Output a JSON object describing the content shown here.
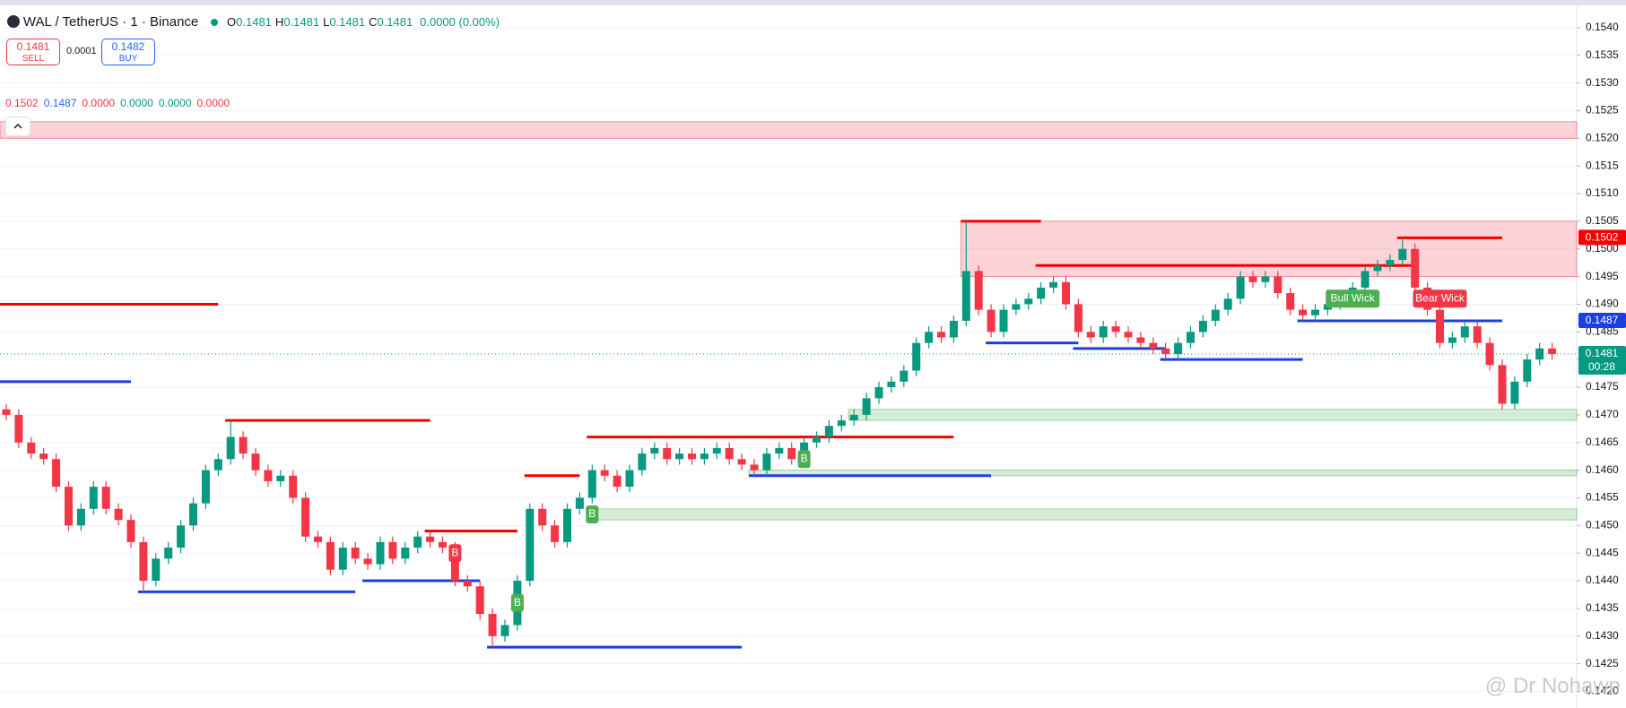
{
  "header": {
    "symbol": "WAL / TetherUS · 1 · Binance",
    "ohlc": [
      {
        "label": "O",
        "value": "0.1481"
      },
      {
        "label": "H",
        "value": "0.1481"
      },
      {
        "label": "L",
        "value": "0.1481"
      },
      {
        "label": "C",
        "value": "0.1481"
      }
    ],
    "change": "0.0000 (0.00%)"
  },
  "trade": {
    "sell_price": "0.1481",
    "sell_label": "SELL",
    "spread": "0.0001",
    "buy_price": "0.1482",
    "buy_label": "BUY"
  },
  "indicator_values": [
    {
      "text": "0.1502",
      "color": "#f23645"
    },
    {
      "text": "0.1487",
      "color": "#2962ff"
    },
    {
      "text": "0.0000",
      "color": "#f23645"
    },
    {
      "text": "0.0000",
      "color": "#089981"
    },
    {
      "text": "0.0000",
      "color": "#089981"
    },
    {
      "text": "0.0000",
      "color": "#f23645"
    }
  ],
  "watermark": "@ Dr Nohawn",
  "chart_data": {
    "type": "candlestick",
    "up_color": "#089981",
    "down_color": "#f23645",
    "open": [
      0.1471,
      0.147,
      0.1465,
      0.1463,
      0.1462,
      0.1457,
      0.145,
      0.1453,
      0.1457,
      0.1453,
      0.1451,
      0.1447,
      0.144,
      0.1444,
      0.1446,
      0.145,
      0.1454,
      0.146,
      0.1462,
      0.1466,
      0.1463,
      0.146,
      0.1458,
      0.1459,
      0.1455,
      0.1448,
      0.1447,
      0.1442,
      0.1446,
      0.1444,
      0.1443,
      0.1447,
      0.1444,
      0.1446,
      0.1448,
      0.1447,
      0.1446,
      0.144,
      0.1439,
      0.1434,
      0.143,
      0.1432,
      0.144,
      0.1453,
      0.145,
      0.1447,
      0.1453,
      0.1455,
      0.146,
      0.1459,
      0.1457,
      0.146,
      0.1463,
      0.1464,
      0.1462,
      0.1463,
      0.1462,
      0.1463,
      0.1464,
      0.1462,
      0.1461,
      0.146,
      0.1463,
      0.1464,
      0.1462,
      0.1465,
      0.1466,
      0.1468,
      0.1469,
      0.147,
      0.1473,
      0.1475,
      0.1476,
      0.1478,
      0.1483,
      0.1485,
      0.1484,
      0.1487,
      0.1496,
      0.1489,
      0.1485,
      0.1489,
      0.149,
      0.1491,
      0.1493,
      0.1494,
      0.149,
      0.1485,
      0.1484,
      0.1486,
      0.1485,
      0.1484,
      0.1483,
      0.1482,
      0.1481,
      0.1483,
      0.1485,
      0.1487,
      0.1489,
      0.1491,
      0.1495,
      0.1494,
      0.1495,
      0.1492,
      0.1489,
      0.1488,
      0.1489,
      0.149,
      0.1491,
      0.1493,
      0.1496,
      0.1497,
      0.1498,
      0.15,
      0.1493,
      0.1489,
      0.1483,
      0.1484,
      0.1486,
      0.1483,
      0.1479,
      0.1472,
      0.1476,
      0.148,
      0.1482
    ],
    "high": [
      0.1472,
      0.1471,
      0.1466,
      0.1464,
      0.1463,
      0.1458,
      0.1454,
      0.1458,
      0.1458,
      0.1454,
      0.1452,
      0.1448,
      0.1445,
      0.1447,
      0.1451,
      0.1455,
      0.1461,
      0.1463,
      0.1469,
      0.1467,
      0.1464,
      0.1461,
      0.146,
      0.146,
      0.1456,
      0.1449,
      0.1448,
      0.1447,
      0.1447,
      0.1445,
      0.1448,
      0.1448,
      0.1447,
      0.1449,
      0.1449,
      0.1448,
      0.1447,
      0.1441,
      0.144,
      0.1435,
      0.1433,
      0.1441,
      0.1454,
      0.1454,
      0.1451,
      0.1454,
      0.1456,
      0.1461,
      0.1461,
      0.146,
      0.1461,
      0.1464,
      0.1465,
      0.1465,
      0.1464,
      0.1464,
      0.1464,
      0.1465,
      0.1465,
      0.1463,
      0.1462,
      0.1464,
      0.1465,
      0.1465,
      0.1466,
      0.1467,
      0.1469,
      0.147,
      0.1471,
      0.1474,
      0.1476,
      0.1477,
      0.1479,
      0.1484,
      0.1486,
      0.1486,
      0.1488,
      0.1505,
      0.1497,
      0.149,
      0.149,
      0.1491,
      0.1492,
      0.1494,
      0.1495,
      0.1495,
      0.1491,
      0.1486,
      0.1487,
      0.1487,
      0.1486,
      0.1485,
      0.1484,
      0.1483,
      0.1484,
      0.1486,
      0.1488,
      0.149,
      0.1492,
      0.1496,
      0.1496,
      0.1496,
      0.1496,
      0.1493,
      0.149,
      0.149,
      0.1491,
      0.1492,
      0.1494,
      0.1497,
      0.1498,
      0.1499,
      0.1502,
      0.1501,
      0.1494,
      0.149,
      0.1485,
      0.1487,
      0.1487,
      0.1484,
      0.148,
      0.1477,
      0.1481,
      0.1483,
      0.1483
    ],
    "low": [
      0.1469,
      0.1464,
      0.1462,
      0.1461,
      0.1456,
      0.1449,
      0.1449,
      0.1452,
      0.1452,
      0.145,
      0.1446,
      0.1438,
      0.1439,
      0.1443,
      0.1445,
      0.1449,
      0.1453,
      0.1459,
      0.1461,
      0.1462,
      0.1459,
      0.1457,
      0.1457,
      0.1454,
      0.1447,
      0.1446,
      0.1441,
      0.1441,
      0.1443,
      0.1442,
      0.1442,
      0.1443,
      0.1443,
      0.1445,
      0.1446,
      0.1445,
      0.1439,
      0.1438,
      0.1433,
      0.1428,
      0.1429,
      0.1431,
      0.1439,
      0.1449,
      0.1446,
      0.1446,
      0.1452,
      0.1454,
      0.1458,
      0.1456,
      0.1456,
      0.1459,
      0.1462,
      0.1461,
      0.1461,
      0.1461,
      0.1461,
      0.1462,
      0.1461,
      0.146,
      0.1459,
      0.1459,
      0.1462,
      0.1461,
      0.1461,
      0.1464,
      0.1465,
      0.1467,
      0.1468,
      0.1469,
      0.1472,
      0.1474,
      0.1475,
      0.1477,
      0.1482,
      0.1483,
      0.1483,
      0.1486,
      0.1488,
      0.1484,
      0.1484,
      0.1488,
      0.1489,
      0.149,
      0.1492,
      0.1489,
      0.1484,
      0.1483,
      0.1483,
      0.1484,
      0.1483,
      0.1482,
      0.1481,
      0.148,
      0.148,
      0.1482,
      0.1484,
      0.1486,
      0.1488,
      0.149,
      0.1493,
      0.1493,
      0.1491,
      0.1488,
      0.1487,
      0.1487,
      0.1488,
      0.1489,
      0.149,
      0.1492,
      0.1495,
      0.1496,
      0.1497,
      0.1492,
      0.1488,
      0.1482,
      0.1482,
      0.1483,
      0.1482,
      0.1478,
      0.1471,
      0.1471,
      0.1475,
      0.1479,
      0.148
    ],
    "close": [
      0.147,
      0.1465,
      0.1463,
      0.1462,
      0.1457,
      0.145,
      0.1453,
      0.1457,
      0.1453,
      0.1451,
      0.1447,
      0.144,
      0.1444,
      0.1446,
      0.145,
      0.1454,
      0.146,
      0.1462,
      0.1466,
      0.1463,
      0.146,
      0.1458,
      0.1459,
      0.1455,
      0.1448,
      0.1447,
      0.1442,
      0.1446,
      0.1444,
      0.1443,
      0.1447,
      0.1444,
      0.1446,
      0.1448,
      0.1447,
      0.1446,
      0.144,
      0.1439,
      0.1434,
      0.143,
      0.1432,
      0.144,
      0.1453,
      0.145,
      0.1447,
      0.1453,
      0.1455,
      0.146,
      0.1459,
      0.1457,
      0.146,
      0.1463,
      0.1464,
      0.1462,
      0.1463,
      0.1462,
      0.1463,
      0.1464,
      0.1462,
      0.1461,
      0.146,
      0.1463,
      0.1464,
      0.1462,
      0.1465,
      0.1466,
      0.1468,
      0.1469,
      0.147,
      0.1473,
      0.1475,
      0.1476,
      0.1478,
      0.1483,
      0.1485,
      0.1484,
      0.1487,
      0.1496,
      0.1489,
      0.1485,
      0.1489,
      0.149,
      0.1491,
      0.1493,
      0.1494,
      0.149,
      0.1485,
      0.1484,
      0.1486,
      0.1485,
      0.1484,
      0.1483,
      0.1482,
      0.1481,
      0.1483,
      0.1485,
      0.1487,
      0.1489,
      0.1491,
      0.1495,
      0.1494,
      0.1495,
      0.1492,
      0.1489,
      0.1488,
      0.1489,
      0.149,
      0.1491,
      0.1493,
      0.1496,
      0.1497,
      0.1498,
      0.15,
      0.1493,
      0.1489,
      0.1483,
      0.1484,
      0.1486,
      0.1483,
      0.1479,
      0.1472,
      0.1476,
      0.148,
      0.1482,
      0.1481
    ],
    "ylim": [
      0.1417,
      0.1545
    ],
    "yticks": [
      {
        "value": 0.142,
        "label": "0.1420"
      },
      0.1425,
      {
        "value": 0.143,
        "label": "0.1430"
      },
      0.1435,
      {
        "value": 0.144,
        "label": "0.1440"
      },
      0.1445,
      {
        "value": 0.145,
        "label": "0.1450"
      },
      0.1455,
      {
        "value": 0.146,
        "label": "0.1460"
      },
      0.1465,
      {
        "value": 0.147,
        "label": "0.1470"
      },
      0.1475,
      {
        "value": 0.148,
        "label": "0.1480"
      },
      0.1485,
      {
        "value": 0.149,
        "label": "0.1490"
      },
      0.1495,
      {
        "value": 0.15,
        "label": "0.1500"
      },
      0.1505,
      {
        "value": 0.151,
        "label": "0.1510"
      },
      0.1515,
      {
        "value": 0.152,
        "label": "0.1520"
      },
      0.1525,
      {
        "value": 0.153,
        "label": "0.1530"
      },
      0.1535,
      {
        "value": 0.154,
        "label": "0.1540"
      }
    ],
    "grid": true,
    "zones": [
      {
        "low": 0.152,
        "high": 0.1523,
        "from": 0,
        "color": "#f23645"
      },
      {
        "low": 0.1495,
        "high": 0.1505,
        "from": 77,
        "color": "#f23645"
      },
      {
        "low": 0.1469,
        "high": 0.1471,
        "from": 68,
        "color": "#4caf50"
      },
      {
        "low": 0.1459,
        "high": 0.146,
        "from": 60,
        "color": "#4caf50"
      },
      {
        "low": 0.1451,
        "high": 0.1453,
        "from": 47,
        "color": "#4caf50"
      }
    ],
    "levels": [
      {
        "price": 0.149,
        "from": 0,
        "to": 17,
        "color": "#f70000"
      },
      {
        "price": 0.1469,
        "from": 18,
        "to": 34,
        "color": "#f70000"
      },
      {
        "price": 0.1449,
        "from": 34,
        "to": 41,
        "color": "#f70000"
      },
      {
        "price": 0.1459,
        "from": 42,
        "to": 46,
        "color": "#f70000"
      },
      {
        "price": 0.1466,
        "from": 47,
        "to": 76,
        "color": "#f70000"
      },
      {
        "price": 0.1505,
        "from": 77,
        "to": 83,
        "color": "#f70000"
      },
      {
        "price": 0.1497,
        "from": 83,
        "to": 113,
        "color": "#f70000"
      },
      {
        "price": 0.1502,
        "from": 112,
        "to": 120,
        "color": "#f70000"
      },
      {
        "price": 0.1476,
        "from": 0,
        "to": 10,
        "color": "#1e3fe0"
      },
      {
        "price": 0.1438,
        "from": 11,
        "to": 28,
        "color": "#1e3fe0"
      },
      {
        "price": 0.144,
        "from": 29,
        "to": 38,
        "color": "#1e3fe0"
      },
      {
        "price": 0.1428,
        "from": 39,
        "to": 59,
        "color": "#1e3fe0"
      },
      {
        "price": 0.1459,
        "from": 60,
        "to": 79,
        "color": "#1e3fe0"
      },
      {
        "price": 0.1483,
        "from": 79,
        "to": 86,
        "color": "#1e3fe0"
      },
      {
        "price": 0.1482,
        "from": 86,
        "to": 93,
        "color": "#1e3fe0"
      },
      {
        "price": 0.148,
        "from": 93,
        "to": 104,
        "color": "#1e3fe0"
      },
      {
        "price": 0.1487,
        "from": 104,
        "to": 120,
        "color": "#1e3fe0"
      }
    ],
    "markers": [
      {
        "text": "B",
        "index": 36,
        "price": 0.1445,
        "color": "#f23645"
      },
      {
        "text": "B",
        "index": 41,
        "price": 0.1436,
        "color": "#4caf50"
      },
      {
        "text": "B",
        "index": 47,
        "price": 0.1452,
        "color": "#4caf50"
      },
      {
        "text": "B",
        "index": 64,
        "price": 0.1462,
        "color": "#4caf50"
      },
      {
        "text": "Bull Wick",
        "index": 108,
        "price": 0.1491,
        "color": "#4caf50"
      },
      {
        "text": "Bear Wick",
        "index": 115,
        "price": 0.1491,
        "color": "#f23645"
      }
    ],
    "last_price": 0.1481,
    "price_labels": [
      {
        "value": 0.1502,
        "label": "0.1502",
        "color": "#f70000"
      },
      {
        "value": 0.1487,
        "label": "0.1487",
        "color": "#1e3fe0"
      },
      {
        "value": 0.1481,
        "label": "0.1481",
        "countdown": "00:28",
        "color": "#089981"
      }
    ]
  }
}
